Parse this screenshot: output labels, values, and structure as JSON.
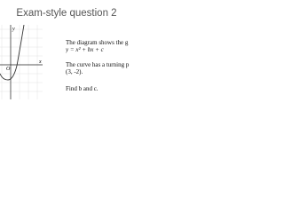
{
  "slide": {
    "title": "Exam-style question 2",
    "lines": [
      "The diagram shows the g",
      "y = x² + bx + c",
      "The curve has a turning p",
      "(3, -2).",
      "Find b and c."
    ],
    "graph": {
      "y_label": "y",
      "x_label": "x",
      "origin_label": "O"
    }
  }
}
